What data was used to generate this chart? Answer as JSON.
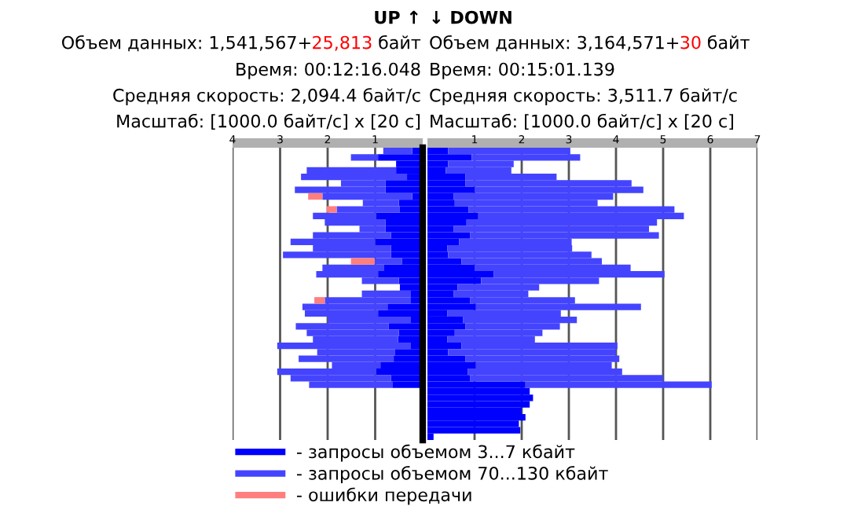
{
  "chart_data": [
    {
      "type": "bar",
      "orientation": "horizontal",
      "stacked": true,
      "title": "UP ↑",
      "annotations": [
        "Объем данных: 1,541,567+",
        "25,813",
        " байт",
        "Время: 00:12:16.048",
        "Средняя скорость: 2,094.4 байт/с",
        "Масштаб: [1000.0 байт/с] x [20 с]"
      ],
      "categories": [
        null,
        null,
        null,
        null,
        null,
        null,
        null,
        null,
        null,
        null,
        null,
        null,
        null,
        null,
        null,
        null,
        null,
        null,
        null,
        null,
        null,
        null,
        null,
        null,
        null,
        null,
        null,
        null,
        null,
        null,
        null,
        null,
        null,
        null,
        null,
        null,
        null,
        null,
        null,
        null,
        null,
        null,
        null,
        null,
        null
      ],
      "series": [
        {
          "name": "- запросы объемом 3...7 кбайт",
          "color": "#0000ff",
          "values": [
            0.22,
            0.94,
            0.56,
            0.56,
            0.33,
            0.78,
            0.78,
            0.22,
            0.5,
            0.48,
            0.98,
            0.78,
            0.78,
            0.67,
            1.0,
            0.67,
            0.67,
            0.44,
            0.81,
            0.94,
            0.5,
            0.48,
            0.26,
            0.26,
            0.74,
            0.94,
            0.26,
            0.72,
            0.5,
            0.52,
            0.26,
            0.59,
            0.61,
            0.89,
            0.98,
            0.67,
            0.64,
            null,
            null,
            null,
            null,
            null,
            null,
            null,
            null
          ]
        },
        {
          "name": "- запросы объемом 70...130 кбайт",
          "color": "#4444ff",
          "values": [
            0.61,
            0.57,
            null,
            1.88,
            2.23,
            0.94,
            1.91,
            1.89,
            0.76,
            1.33,
            1.33,
            1.28,
            0.55,
            1.64,
            1.78,
            1.64,
            2.27,
            0.57,
            1.3,
            1.3,
            0.78,
            null,
            1.02,
            1.8,
            1.79,
            1.54,
            1.74,
            1.95,
            1.94,
            1.79,
            2.8,
            1.63,
            2.0,
            1.02,
            2.08,
            2.11,
            1.75,
            null,
            null,
            null,
            null,
            null,
            null,
            null,
            null
          ]
        },
        {
          "name": "- ошибки передачи",
          "color": "#ff7f7f",
          "values": [
            null,
            null,
            null,
            null,
            null,
            null,
            null,
            0.3,
            null,
            0.21,
            null,
            null,
            null,
            null,
            null,
            null,
            null,
            0.5,
            null,
            null,
            null,
            null,
            null,
            0.22,
            null,
            null,
            null,
            null,
            null,
            null,
            null,
            null,
            null,
            null,
            null,
            null,
            null,
            null,
            null,
            null,
            null,
            null,
            null,
            null,
            null
          ]
        }
      ],
      "xlim": [
        4,
        0
      ],
      "xticks": [
        4,
        3,
        2,
        1
      ],
      "grid": "x",
      "tick_labels": "x",
      "legend": "bottom"
    },
    {
      "type": "bar",
      "orientation": "horizontal",
      "stacked": true,
      "title": "↓ DOWN",
      "annotations": [
        "Объем данных: 3,164,571+",
        "30",
        " байт",
        "Время: 00:15:01.139",
        "Средняя скорость: 3,511.7 байт/с",
        "Масштаб: [1000.0 байт/с] x [20 с]"
      ],
      "categories": [
        null,
        null,
        null,
        null,
        null,
        null,
        null,
        null,
        null,
        null,
        null,
        null,
        null,
        null,
        null,
        null,
        null,
        null,
        null,
        null,
        null,
        null,
        null,
        null,
        null,
        null,
        null,
        null,
        null,
        null,
        null,
        null,
        null,
        null,
        null,
        null,
        null,
        null,
        null,
        null,
        null,
        null,
        null,
        null,
        null
      ],
      "series": [
        {
          "color": "#0000ff",
          "values": [
            0.44,
            0.94,
            0.44,
            0.39,
            0.81,
            0.81,
            1.0,
            0.56,
            0.58,
            0.87,
            1.08,
            0.83,
            0.56,
            0.91,
            0.67,
            0.42,
            0.44,
            0.72,
            1.0,
            1.41,
            1.14,
            0.64,
            0.56,
            0.91,
            1.03,
            0.42,
            0.76,
            0.81,
            0.58,
            0.42,
            0.72,
            0.44,
            0.81,
            1.03,
            0.86,
            0.91,
            2.08,
            2.17,
            2.24,
            2.17,
            2.0,
            2.08,
            1.94,
            1.97,
            0.13
          ]
        },
        {
          "color": "#4444ff",
          "values": [
            2.59,
            2.3,
            1.39,
            1.39,
            1.93,
            3.52,
            3.58,
            3.38,
            3.03,
            4.37,
            4.36,
            4.04,
            4.14,
            4.0,
            2.39,
            2.65,
            3.04,
            2.98,
            3.31,
            3.62,
            2.5,
            1.73,
            1.58,
            2.22,
            3.5,
            2.41,
            2.41,
            2.0,
            1.86,
            1.86,
            3.31,
            3.56,
            3.26,
            2.88,
            3.27,
            4.09,
            3.95,
            null,
            null,
            null,
            null,
            null,
            null,
            null,
            null
          ]
        }
      ],
      "xlim": [
        0,
        7
      ],
      "xticks": [
        1,
        2,
        3,
        4,
        5,
        6,
        7
      ],
      "grid": "x",
      "tick_labels": "x"
    }
  ]
}
